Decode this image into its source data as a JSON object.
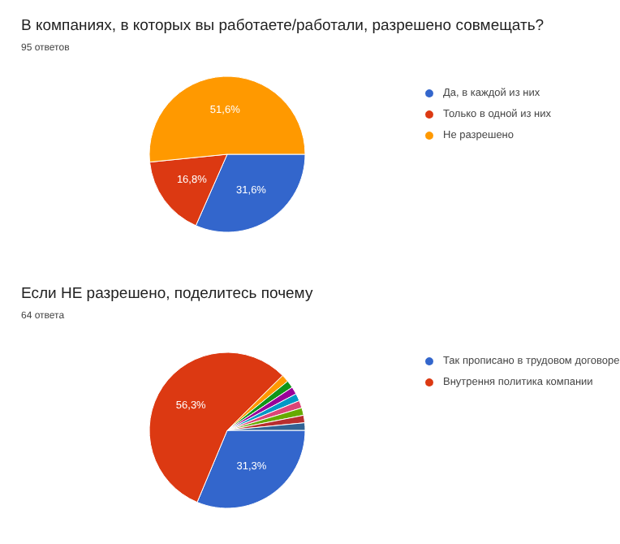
{
  "chart_data": [
    {
      "type": "pie",
      "title": "В компаниях, в которых вы работаете/работали, разрешено совмещать?",
      "subtitle": "95 ответов",
      "categories": [
        "Да, в каждой из них",
        "Только в одной из них",
        "Не разрешено"
      ],
      "values": [
        31.6,
        16.8,
        51.6
      ],
      "colors": [
        "#3366cc",
        "#dc3912",
        "#ff9900"
      ],
      "value_labels": [
        "31,6%",
        "16,8%",
        "51,6%"
      ],
      "legend": "right"
    },
    {
      "type": "pie",
      "title": "Если НЕ разрешено, поделитесь почему",
      "subtitle": "64 ответа",
      "categories": [
        "Так прописано в трудовом договоре",
        "Внутрення политика компании",
        null,
        null,
        null,
        null,
        null,
        null,
        null,
        null
      ],
      "values": [
        31.3,
        56.3,
        1.55,
        1.55,
        1.55,
        1.55,
        1.55,
        1.55,
        1.55,
        1.55
      ],
      "colors": [
        "#3366cc",
        "#dc3912",
        "#ff9900",
        "#109618",
        "#990099",
        "#0099c6",
        "#dd4477",
        "#66aa00",
        "#b82e2e",
        "#316395"
      ],
      "value_labels": [
        "31,3%",
        "56,3%",
        null,
        null,
        null,
        null,
        null,
        null,
        null,
        null
      ],
      "legend": "right"
    }
  ]
}
